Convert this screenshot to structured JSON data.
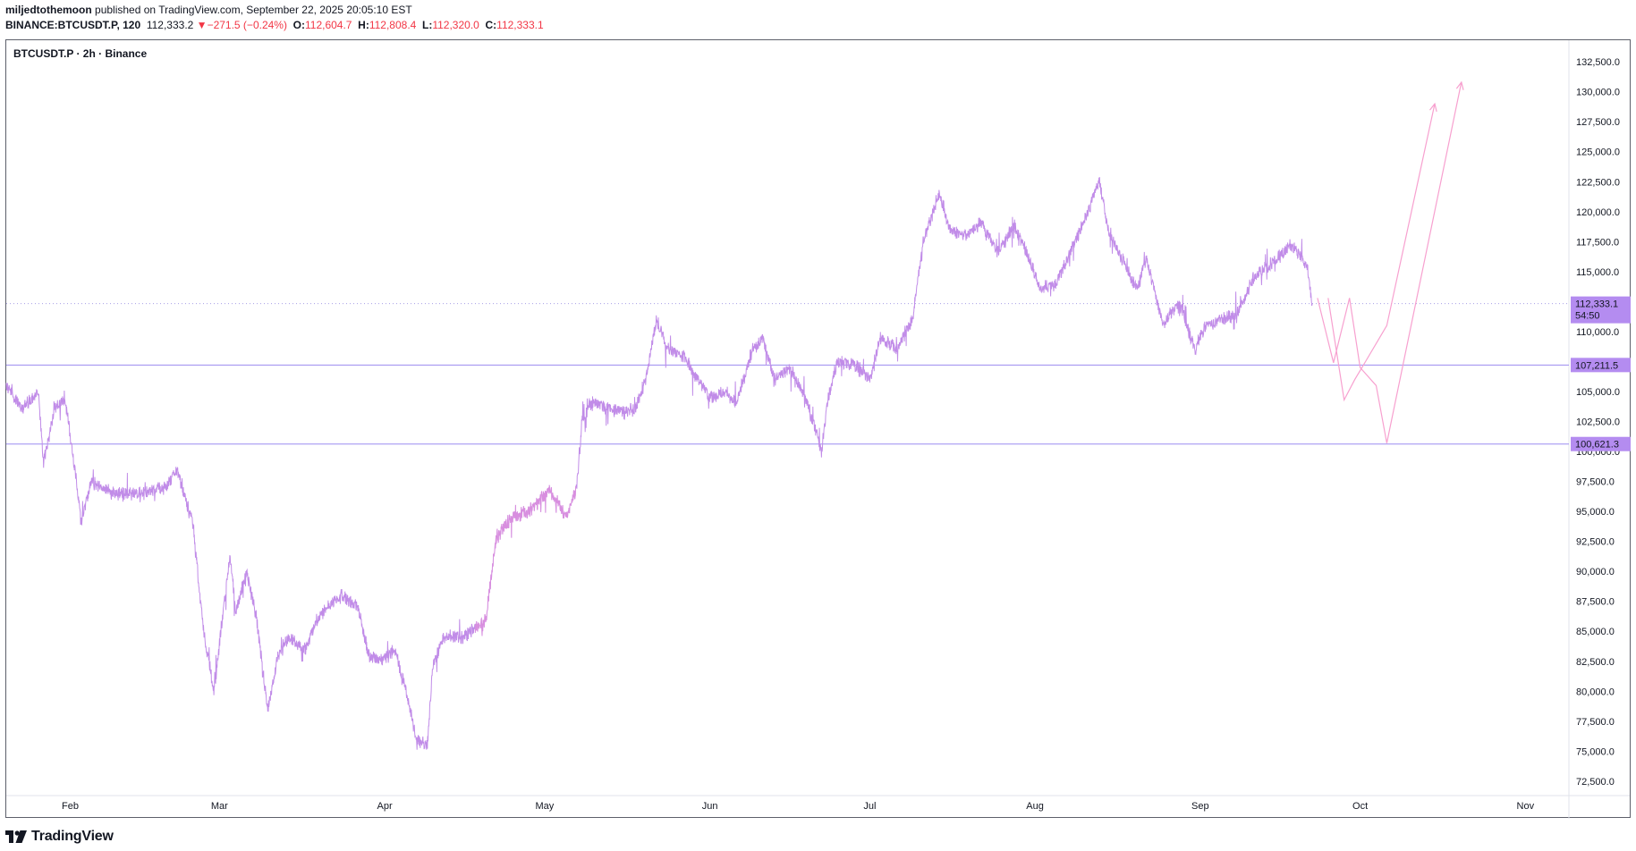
{
  "header": {
    "publisher": "miljedtothemoon",
    "published_text": "published on TradingView.com, September 22, 2025 20:05:10 EST",
    "symbol_line": "BINANCE:BTCUSDT.P, 120",
    "last": "112,333.2",
    "change_arrow": "▼",
    "change": "−271.5 (−0.24%)",
    "o_label": "O:",
    "o_value": "112,604.7",
    "h_label": "H:",
    "h_value": "112,808.4",
    "l_label": "L:",
    "l_value": "112,320.0",
    "c_label": "C:",
    "c_value": "112,333.1"
  },
  "chart_title": "BTCUSDT.P · 2h · Binance",
  "brand": {
    "name": "TradingView",
    "icon": "tradingview-logo-icon"
  },
  "colors": {
    "price_line": "#c18ce8",
    "price_line_alt": "#f08fd6",
    "horizontal_level": "#9c8cf0",
    "label_bg": "#b48cf0",
    "projection": "#f7a0cf",
    "current_price_dots": "#a89ee6",
    "header_red": "#f23645"
  },
  "chart_data": {
    "type": "line",
    "x_axis_labels": [
      "Feb",
      "Mar",
      "Apr",
      "May",
      "Jun",
      "Jul",
      "Aug",
      "Sep",
      "Oct",
      "Nov"
    ],
    "y_axis_labels": [
      "132,500.0",
      "130,000.0",
      "127,500.0",
      "125,000.0",
      "122,500.0",
      "120,000.0",
      "117,500.0",
      "115,000.0",
      "112,500.0",
      "110,000.0",
      "107,500.0",
      "105,000.0",
      "102,500.0",
      "100,000.0",
      "97,500.0",
      "95,000.0",
      "92,500.0",
      "90,000.0",
      "87,500.0",
      "85,000.0",
      "82,500.0",
      "80,000.0",
      "77,500.0",
      "75,000.0",
      "72,500.0"
    ],
    "ylim": [
      71300,
      134300
    ],
    "series": [
      {
        "points": [
          [
            "2025-01-20",
            105500
          ],
          [
            "2025-01-23",
            103500
          ],
          [
            "2025-01-26",
            105000
          ],
          [
            "2025-01-27",
            99000
          ],
          [
            "2025-01-29",
            103500
          ],
          [
            "2025-01-31",
            104500
          ],
          [
            "2025-02-02",
            98000
          ],
          [
            "2025-02-03",
            94000
          ],
          [
            "2025-02-05",
            97500
          ],
          [
            "2025-02-09",
            96500
          ],
          [
            "2025-02-13",
            96500
          ],
          [
            "2025-02-17",
            96800
          ],
          [
            "2025-02-19",
            97000
          ],
          [
            "2025-02-21",
            98500
          ],
          [
            "2025-02-24",
            94000
          ],
          [
            "2025-02-26",
            85000
          ],
          [
            "2025-02-28",
            80000
          ],
          [
            "2025-03-01",
            84000
          ],
          [
            "2025-03-03",
            91500
          ],
          [
            "2025-03-04",
            86500
          ],
          [
            "2025-03-06",
            90000
          ],
          [
            "2025-03-08",
            86000
          ],
          [
            "2025-03-10",
            78500
          ],
          [
            "2025-03-12",
            83000
          ],
          [
            "2025-03-14",
            84500
          ],
          [
            "2025-03-17",
            83500
          ],
          [
            "2025-03-20",
            86500
          ],
          [
            "2025-03-24",
            88000
          ],
          [
            "2025-03-27",
            87000
          ],
          [
            "2025-03-29",
            83000
          ],
          [
            "2025-03-31",
            82500
          ],
          [
            "2025-04-03",
            83500
          ],
          [
            "2025-04-06",
            78000
          ],
          [
            "2025-04-07",
            76000
          ],
          [
            "2025-04-09",
            75500
          ],
          [
            "2025-04-10",
            82000
          ],
          [
            "2025-04-12",
            84500
          ],
          [
            "2025-04-16",
            84500
          ],
          [
            "2025-04-20",
            86000
          ],
          [
            "2025-04-22",
            93000
          ],
          [
            "2025-04-25",
            94500
          ],
          [
            "2025-04-28",
            95000
          ],
          [
            "2025-05-02",
            96800
          ],
          [
            "2025-05-05",
            94500
          ],
          [
            "2025-05-07",
            97000
          ],
          [
            "2025-05-08",
            102500
          ],
          [
            "2025-05-10",
            104000
          ],
          [
            "2025-05-14",
            103500
          ],
          [
            "2025-05-18",
            103500
          ],
          [
            "2025-05-20",
            106000
          ],
          [
            "2025-05-22",
            111000
          ],
          [
            "2025-05-24",
            108500
          ],
          [
            "2025-05-27",
            108000
          ],
          [
            "2025-05-29",
            106500
          ],
          [
            "2025-06-01",
            104500
          ],
          [
            "2025-06-04",
            105000
          ],
          [
            "2025-06-06",
            104000
          ],
          [
            "2025-06-09",
            108500
          ],
          [
            "2025-06-11",
            109500
          ],
          [
            "2025-06-13",
            106000
          ],
          [
            "2025-06-16",
            107000
          ],
          [
            "2025-06-19",
            104500
          ],
          [
            "2025-06-22",
            100000
          ],
          [
            "2025-06-23",
            104000
          ],
          [
            "2025-06-25",
            107500
          ],
          [
            "2025-06-28",
            107300
          ],
          [
            "2025-07-01",
            106000
          ],
          [
            "2025-07-03",
            109500
          ],
          [
            "2025-07-06",
            108500
          ],
          [
            "2025-07-09",
            111000
          ],
          [
            "2025-07-11",
            117500
          ],
          [
            "2025-07-14",
            121500
          ],
          [
            "2025-07-16",
            118500
          ],
          [
            "2025-07-19",
            118000
          ],
          [
            "2025-07-22",
            119000
          ],
          [
            "2025-07-25",
            116500
          ],
          [
            "2025-07-28",
            119000
          ],
          [
            "2025-07-31",
            116000
          ],
          [
            "2025-08-02",
            113500
          ],
          [
            "2025-08-05",
            114000
          ],
          [
            "2025-08-08",
            117000
          ],
          [
            "2025-08-11",
            120000
          ],
          [
            "2025-08-13",
            122500
          ],
          [
            "2025-08-15",
            118000
          ],
          [
            "2025-08-18",
            115500
          ],
          [
            "2025-08-20",
            113500
          ],
          [
            "2025-08-22",
            116000
          ],
          [
            "2025-08-25",
            110500
          ],
          [
            "2025-08-28",
            112500
          ],
          [
            "2025-08-31",
            108500
          ],
          [
            "2025-09-02",
            110500
          ],
          [
            "2025-09-05",
            111000
          ],
          [
            "2025-09-08",
            111500
          ],
          [
            "2025-09-11",
            114500
          ],
          [
            "2025-09-14",
            115500
          ],
          [
            "2025-09-18",
            117200
          ],
          [
            "2025-09-21",
            115500
          ],
          [
            "2025-09-22",
            112333
          ]
        ]
      }
    ],
    "current_price_line": {
      "value": 112333.1,
      "label": "112,333.1",
      "countdown": "54:50"
    },
    "horizontal_levels": [
      {
        "value": 107211.5,
        "label": "107,211.5"
      },
      {
        "value": 100621.3,
        "label": "100,621.3"
      }
    ],
    "projections": [
      [
        [
          "2025-09-23",
          112800
        ],
        [
          "2025-09-26",
          107400
        ],
        [
          "2025-09-29",
          112800
        ],
        [
          "2025-10-01",
          107000
        ],
        [
          "2025-10-04",
          105500
        ],
        [
          "2025-10-06",
          100700
        ],
        [
          "2025-10-20",
          130800
        ]
      ],
      [
        [
          "2025-09-25",
          112800
        ],
        [
          "2025-09-28",
          104300
        ],
        [
          "2025-09-30",
          106000
        ],
        [
          "2025-10-02",
          107500
        ],
        [
          "2025-10-06",
          110500
        ],
        [
          "2025-10-15",
          129000
        ]
      ]
    ]
  }
}
